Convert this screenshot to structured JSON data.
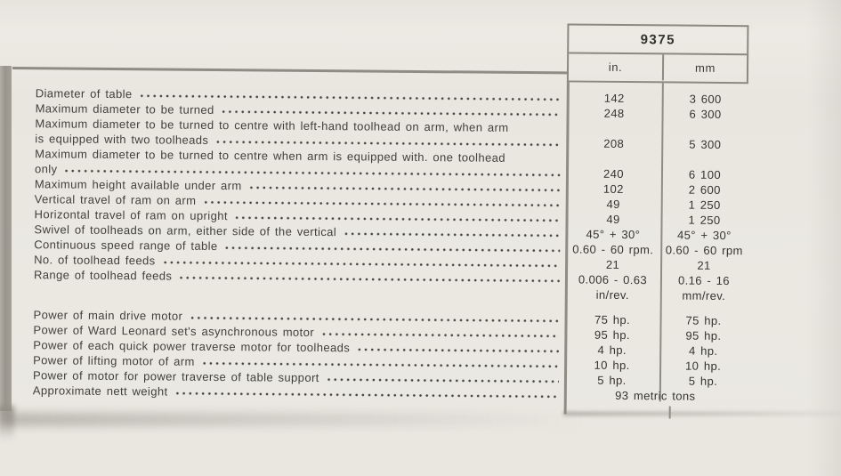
{
  "table": {
    "model": "9375",
    "columns": [
      "in.",
      "mm"
    ],
    "rows": [
      {
        "lines": [
          "Diameter of table"
        ],
        "in": "142",
        "mm": "3 600"
      },
      {
        "lines": [
          "Maximum diameter to be turned"
        ],
        "in": "248",
        "mm": "6 300"
      },
      {
        "lines": [
          "Maximum diameter to be turned to centre with left-hand toolhead on arm, when arm",
          "is equipped with two toolheads"
        ],
        "in": "208",
        "mm": "5 300"
      },
      {
        "lines": [
          "Maximum diameter to be turned to centre when arm is equipped with. one toolhead",
          "only"
        ],
        "in": "240",
        "mm": "6 100"
      },
      {
        "lines": [
          "Maximum height available under arm"
        ],
        "in": "102",
        "mm": "2 600"
      },
      {
        "lines": [
          "Vertical travel of ram on arm"
        ],
        "in": "49",
        "mm": "1 250"
      },
      {
        "lines": [
          "Horizontal travel of ram on upright"
        ],
        "in": "49",
        "mm": "1 250"
      },
      {
        "lines": [
          "Swivel of toolheads on arm, either side of the vertical"
        ],
        "in": "45° + 30°",
        "mm": "45° + 30°"
      },
      {
        "lines": [
          "Continuous speed range of table"
        ],
        "in": "0.60 - 60 rpm.",
        "mm": "0.60 - 60 rpm"
      },
      {
        "lines": [
          "No. of toolhead feeds"
        ],
        "in": "21",
        "mm": "21"
      },
      {
        "lines": [
          "Range of toolhead feeds"
        ],
        "in": "0.006 - 0.63",
        "in2": "in/rev.",
        "mm": "0.16 - 16",
        "mm2": "mm/rev."
      },
      {
        "lines": [
          "Power of main drive motor"
        ],
        "in": "75 hp.",
        "mm": "75 hp.",
        "gap_before": true
      },
      {
        "lines": [
          "Power of Ward Leonard set's asynchronous motor"
        ],
        "in": "95 hp.",
        "mm": "95 hp."
      },
      {
        "lines": [
          "Power of each quick power traverse motor for toolheads"
        ],
        "in": "4 hp.",
        "mm": "4 hp."
      },
      {
        "lines": [
          "Power of lifting motor of arm"
        ],
        "in": "10 hp.",
        "mm": "10 hp."
      },
      {
        "lines": [
          "Power of motor for power traverse of table support"
        ],
        "in": "5 hp.",
        "mm": "5 hp."
      },
      {
        "lines": [
          "Approximate nett weight"
        ],
        "span": "93 metric tons"
      }
    ]
  }
}
